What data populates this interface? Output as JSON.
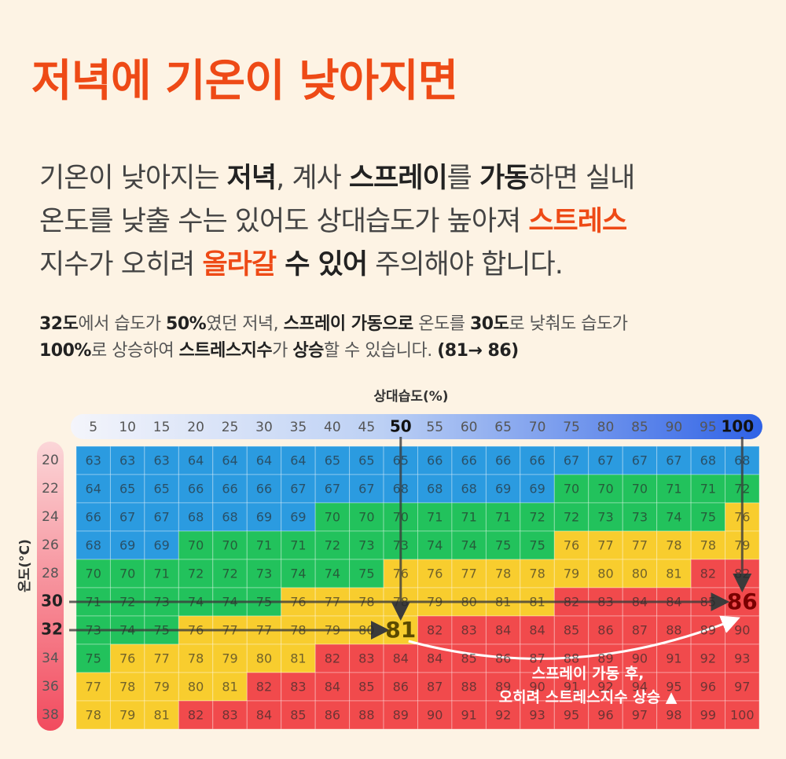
{
  "title": "저녁에 기온이 낮아지면",
  "intro": [
    [
      {
        "text": "기온이 낮아지는 "
      },
      {
        "text": "저녁",
        "style": "bold"
      },
      {
        "text": ", 계사 "
      },
      {
        "text": "스프레이",
        "style": "bold"
      },
      {
        "text": "를 "
      },
      {
        "text": "가동",
        "style": "bold"
      },
      {
        "text": "하면 실내"
      }
    ],
    [
      {
        "text": "온도를 낮출 수는 있어도 상대습도가 높아져 "
      },
      {
        "text": "스트레스",
        "style": "accent"
      }
    ],
    [
      {
        "text": "지수가 오히려 "
      },
      {
        "text": "올라갈",
        "style": "accent"
      },
      {
        "text": " 수 있어",
        "style": "bold"
      },
      {
        "text": " 주의해야 합니다."
      }
    ]
  ],
  "detail": [
    [
      {
        "text": "32도",
        "style": "bold"
      },
      {
        "text": "에서 습도가 "
      },
      {
        "text": "50%",
        "style": "bold"
      },
      {
        "text": "였던 저녁, "
      },
      {
        "text": "스프레이 가동으로",
        "style": "bold"
      },
      {
        "text": " 온도를 "
      },
      {
        "text": "30도",
        "style": "bold"
      },
      {
        "text": "로 낮춰도 습도가"
      }
    ],
    [
      {
        "text": "100%",
        "style": "bold"
      },
      {
        "text": "로 상승하여 "
      },
      {
        "text": "스트레스지수",
        "style": "bold"
      },
      {
        "text": "가 "
      },
      {
        "text": "상승",
        "style": "bold"
      },
      {
        "text": "할 수 있습니다. "
      },
      {
        "text": "(81→ 86)",
        "style": "bold"
      }
    ]
  ],
  "table": {
    "x_label": "상대습도(%)",
    "y_label": "온도(°C)",
    "humidity": [
      5,
      10,
      15,
      20,
      25,
      30,
      35,
      40,
      45,
      50,
      55,
      60,
      65,
      70,
      75,
      80,
      85,
      90,
      95,
      100
    ],
    "rows": [
      {
        "temperature": 20,
        "values": [
          63,
          63,
          63,
          64,
          64,
          64,
          64,
          65,
          65,
          65,
          66,
          66,
          66,
          66,
          67,
          67,
          67,
          67,
          68,
          68
        ]
      },
      {
        "temperature": 22,
        "values": [
          64,
          65,
          65,
          66,
          66,
          66,
          67,
          67,
          67,
          68,
          68,
          68,
          69,
          69,
          70,
          70,
          70,
          71,
          71,
          72
        ]
      },
      {
        "temperature": 24,
        "values": [
          66,
          67,
          67,
          68,
          68,
          69,
          69,
          70,
          70,
          70,
          71,
          71,
          71,
          72,
          72,
          73,
          73,
          74,
          75,
          76
        ]
      },
      {
        "temperature": 26,
        "values": [
          68,
          69,
          69,
          70,
          70,
          71,
          71,
          72,
          73,
          73,
          74,
          74,
          75,
          75,
          76,
          77,
          77,
          78,
          78,
          79
        ]
      },
      {
        "temperature": 28,
        "values": [
          70,
          70,
          71,
          72,
          72,
          73,
          74,
          74,
          75,
          76,
          76,
          77,
          78,
          78,
          79,
          80,
          80,
          81,
          82,
          82
        ]
      },
      {
        "temperature": 30,
        "values": [
          71,
          72,
          73,
          74,
          74,
          75,
          76,
          77,
          78,
          78,
          79,
          80,
          81,
          81,
          82,
          83,
          84,
          84,
          85,
          86
        ]
      },
      {
        "temperature": 32,
        "values": [
          73,
          74,
          75,
          76,
          77,
          77,
          78,
          79,
          80,
          81,
          82,
          83,
          84,
          84,
          85,
          86,
          87,
          88,
          89,
          90
        ]
      },
      {
        "temperature": 34,
        "values": [
          75,
          76,
          77,
          78,
          79,
          80,
          81,
          82,
          83,
          84,
          84,
          85,
          86,
          87,
          88,
          89,
          90,
          91,
          92,
          93
        ]
      },
      {
        "temperature": 36,
        "values": [
          77,
          78,
          79,
          80,
          81,
          82,
          83,
          84,
          85,
          86,
          87,
          88,
          89,
          90,
          91,
          92,
          94,
          95,
          96,
          97
        ]
      },
      {
        "temperature": 38,
        "values": [
          78,
          79,
          81,
          82,
          83,
          84,
          85,
          86,
          88,
          89,
          90,
          91,
          92,
          93,
          95,
          96,
          97,
          98,
          99,
          100
        ]
      }
    ],
    "bands": [
      {
        "from": 0,
        "color": "#2b9be0"
      },
      {
        "from": 70,
        "color": "#22c25c"
      },
      {
        "from": 76,
        "color": "#f8cd2e"
      },
      {
        "from": 82,
        "color": "#f14a4c"
      }
    ],
    "annotation": {
      "from": {
        "temperature": 32,
        "humidity": 50
      },
      "to": {
        "temperature": 30,
        "humidity": 100
      },
      "text": [
        "스프레이 가동 후,",
        "오히려 스트레스지수 상승 ▲"
      ]
    }
  }
}
